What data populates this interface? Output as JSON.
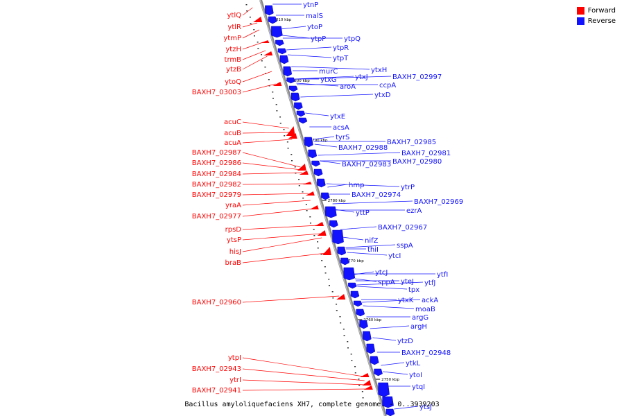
{
  "legend": {
    "forward_label": "Forward",
    "reverse_label": "Reverse",
    "forward_color": "#ff0000",
    "reverse_color": "#1212ff"
  },
  "caption": "Bacillus amyloliquefaciens XH7, complete genome. - 0..3939203",
  "axis_color": "#888888",
  "ticks": [
    "2810 kbp",
    "2800 kbp",
    "2790 kbp",
    "2780 kbp",
    "2770 kbp",
    "2760 kbp",
    "2750 kbp"
  ],
  "forward_genes": [
    "ytlQ",
    "ytlR",
    "ytmP",
    "ytzH",
    "trmB",
    "ytzB",
    "ytoQ",
    "BAXH7_03003",
    "acuC",
    "acuB",
    "acuA",
    "BAXH7_02987",
    "BAXH7_02986",
    "BAXH7_02984",
    "BAXH7_02982",
    "BAXH7_02979",
    "yraA",
    "BAXH7_02977",
    "rpsD",
    "ytsP",
    "hisJ",
    "braB",
    "BAXH7_02960",
    "ytpI",
    "BAXH7_02943",
    "ytrI",
    "BAXH7_02941"
  ],
  "reverse_genes": [
    "ytnP",
    "malS",
    "ytoP",
    "ytpP",
    "ytpQ",
    "ytpR",
    "ytpT",
    "murC",
    "ytxJ",
    "ytxH",
    "ytxG",
    "BAXH7_02997",
    "aroA",
    "ccpA",
    "ytxD",
    "ytxE",
    "acsA",
    "tyrS",
    "BAXH7_02988",
    "BAXH7_02985",
    "BAXH7_02981",
    "BAXH7_02983",
    "BAXH7_02980",
    "hmp",
    "ytrP",
    "BAXH7_02974",
    "BAXH7_02969",
    "yttP",
    "ezrA",
    "BAXH7_02967",
    "nifZ",
    "thiI",
    "sspA",
    "ytcI",
    "ytfI",
    "ytcJ",
    "sppA",
    "yteJ",
    "ytfJ",
    "tpx",
    "ytxK",
    "ackA",
    "moaB",
    "argG",
    "argH",
    "ytzD",
    "BAXH7_02948",
    "ytkL",
    "ytoI",
    "ytqI",
    "ytsJ"
  ]
}
